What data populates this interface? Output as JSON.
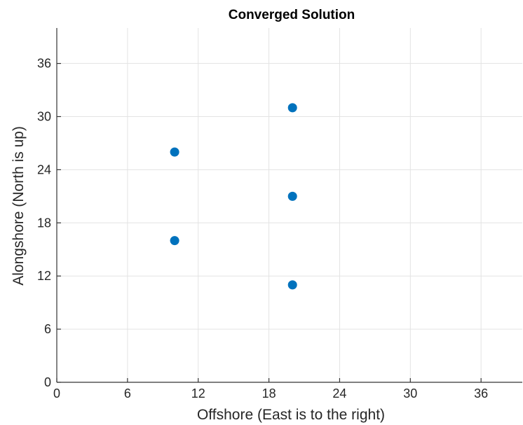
{
  "chart_data": {
    "type": "scatter",
    "title": "Converged Solution",
    "xlabel": "Offshore (East is to the right)",
    "ylabel": "Alongshore (North is up)",
    "xlim": [
      0,
      39.5
    ],
    "ylim": [
      0,
      40
    ],
    "xticks": [
      0,
      6,
      12,
      18,
      24,
      30,
      36
    ],
    "yticks": [
      0,
      6,
      12,
      18,
      24,
      30,
      36
    ],
    "grid": true,
    "series": [
      {
        "color": "#0072BD",
        "points": [
          {
            "x": 10,
            "y": 16
          },
          {
            "x": 10,
            "y": 26
          },
          {
            "x": 20,
            "y": 11
          },
          {
            "x": 20,
            "y": 21
          },
          {
            "x": 20,
            "y": 31
          }
        ]
      }
    ]
  }
}
